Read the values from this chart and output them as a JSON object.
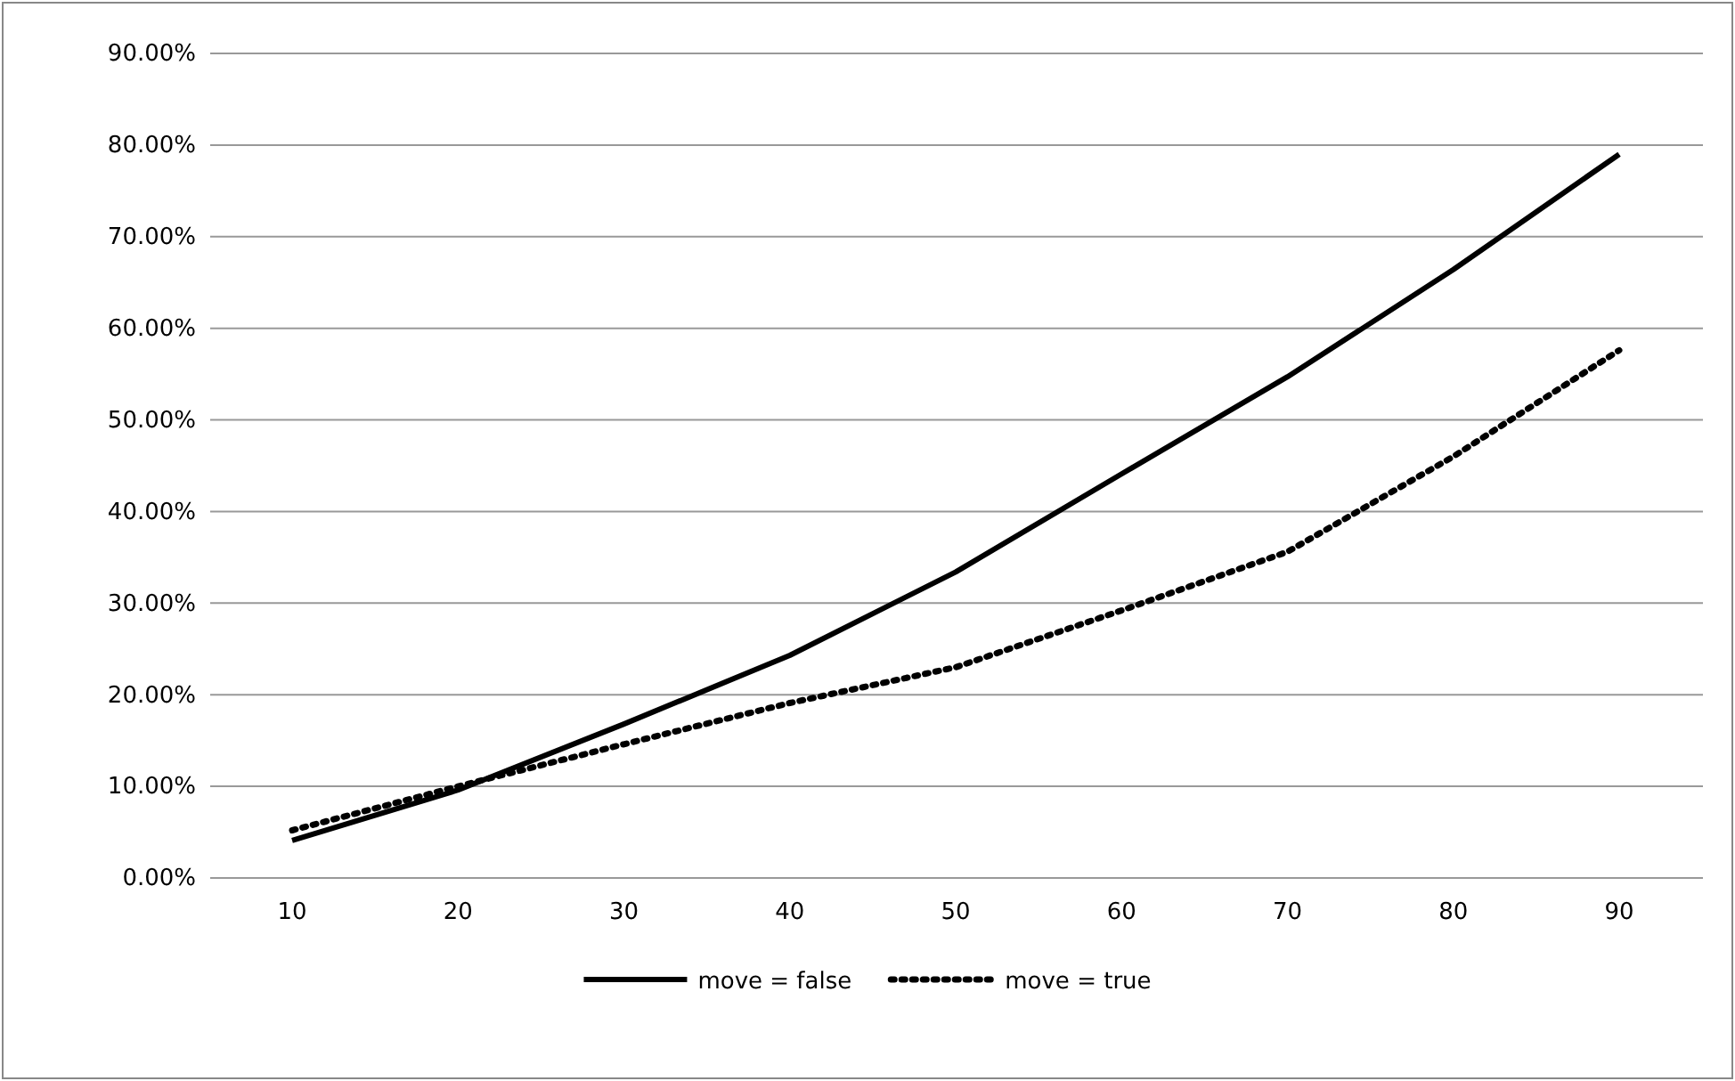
{
  "chart_data": {
    "type": "line",
    "categories": [
      "10",
      "20",
      "30",
      "40",
      "50",
      "60",
      "70",
      "80",
      "90"
    ],
    "series": [
      {
        "name": "move = false",
        "color": "#000000",
        "line_style": "solid",
        "values": [
          4.1,
          9.6,
          16.8,
          24.3,
          33.4,
          44.1,
          54.7,
          66.4,
          79.0
        ]
      },
      {
        "name": "move = true",
        "color": "#000000",
        "line_style": "dotted",
        "values": [
          5.2,
          10.0,
          14.6,
          19.1,
          23.0,
          29.2,
          35.6,
          46.0,
          57.6
        ]
      }
    ],
    "ylim": [
      0,
      90
    ],
    "yticks": [
      {
        "value": 0,
        "label": "0.00%"
      },
      {
        "value": 10,
        "label": "10.00%"
      },
      {
        "value": 20,
        "label": "20.00%"
      },
      {
        "value": 30,
        "label": "30.00%"
      },
      {
        "value": 40,
        "label": "40.00%"
      },
      {
        "value": 50,
        "label": "50.00%"
      },
      {
        "value": 60,
        "label": "60.00%"
      },
      {
        "value": 70,
        "label": "70.00%"
      },
      {
        "value": 80,
        "label": "80.00%"
      },
      {
        "value": 90,
        "label": "90.00%"
      }
    ],
    "grid": "y",
    "legend": "bottom",
    "marker": "none"
  }
}
